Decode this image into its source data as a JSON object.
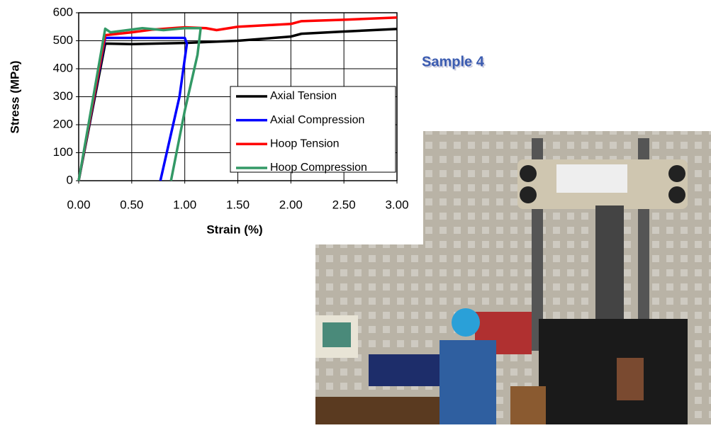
{
  "chart_data": {
    "type": "line",
    "annotation": "Sample 4",
    "xlabel": "Strain (%)",
    "ylabel": "Stress (MPa)",
    "xlim": [
      0,
      3
    ],
    "xticks": [
      {
        "value": 0,
        "label": "0.00"
      },
      {
        "value": 0.5,
        "label": "0.50"
      },
      {
        "value": 1,
        "label": "1.00"
      },
      {
        "value": 1.5,
        "label": "1.50"
      },
      {
        "value": 2,
        "label": "2.00"
      },
      {
        "value": 2.5,
        "label": "2.50"
      },
      {
        "value": 3,
        "label": "3.00"
      }
    ],
    "ylim": [
      0,
      600
    ],
    "yticks": [
      0,
      100,
      200,
      300,
      400,
      500,
      600
    ],
    "grid": true,
    "legend": "lower right",
    "series": [
      {
        "name": "Axial Tension",
        "color": "#000000",
        "x": [
          0,
          0.25,
          0.5,
          1.0,
          1.5,
          2.0,
          2.1,
          2.5,
          3.0
        ],
        "values": [
          0,
          490,
          488,
          492,
          500,
          515,
          525,
          533,
          542
        ]
      },
      {
        "name": "Axial Compression",
        "color": "#0000ff",
        "x": [
          0,
          0.25,
          1.0,
          1.02,
          0.95,
          0.77
        ],
        "values": [
          0,
          510,
          510,
          490,
          300,
          0
        ]
      },
      {
        "name": "Hoop Tension",
        "color": "#ff0000",
        "x": [
          0,
          0.25,
          0.5,
          0.7,
          1.0,
          1.2,
          1.3,
          1.5,
          2.0,
          2.1,
          2.5,
          3.0
        ],
        "values": [
          0,
          520,
          530,
          540,
          548,
          545,
          538,
          550,
          560,
          570,
          575,
          583
        ]
      },
      {
        "name": "Hoop Compression",
        "color": "#339966",
        "x": [
          0,
          0.25,
          0.3,
          0.6,
          0.8,
          1.0,
          1.15,
          1.12,
          1.0,
          0.87
        ],
        "values": [
          0,
          543,
          530,
          545,
          538,
          545,
          545,
          450,
          250,
          0
        ]
      }
    ]
  }
}
